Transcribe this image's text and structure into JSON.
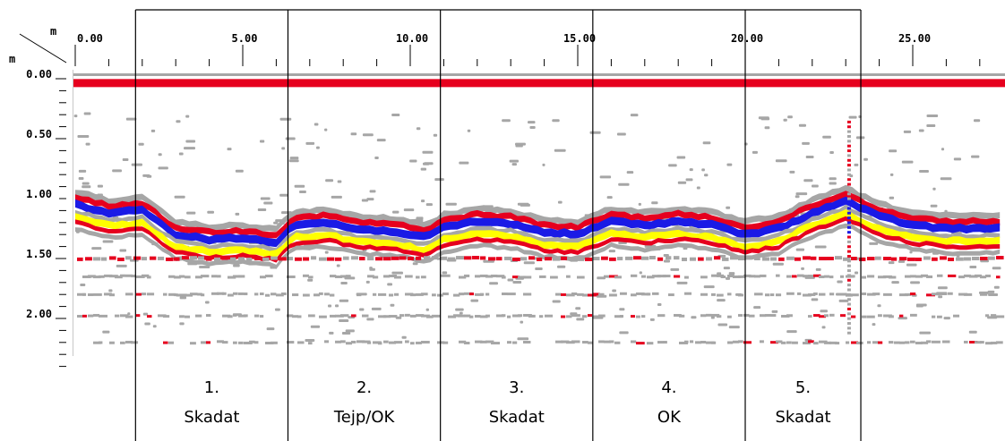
{
  "unit_labels": {
    "horizontal": "m",
    "vertical": "m"
  },
  "x_axis": {
    "unit": "m",
    "range": [
      0,
      27.6
    ],
    "major_ticks": [
      {
        "value": 0,
        "label": "0.00"
      },
      {
        "value": 5,
        "label": "5.00"
      },
      {
        "value": 10,
        "label": "10.00"
      },
      {
        "value": 15,
        "label": "15.00"
      },
      {
        "value": 20,
        "label": "20.00"
      },
      {
        "value": 25,
        "label": "25.00"
      }
    ],
    "minor_tick_step": 1
  },
  "y_axis": {
    "unit": "m",
    "range": [
      -0.1,
      2.4
    ],
    "major_ticks": [
      {
        "value": 0.0,
        "label": "0.00"
      },
      {
        "value": 0.5,
        "label": "0.50"
      },
      {
        "value": 1.0,
        "label": "1.00"
      },
      {
        "value": 1.5,
        "label": "1.50"
      },
      {
        "value": 2.0,
        "label": "2.00"
      }
    ],
    "minor_tick_step": 0.1
  },
  "colors": {
    "red": "#e6001e",
    "blue": "#1a1ae6",
    "yellow": "#ffff00",
    "gray": "#a6a6a6",
    "frame": "#000000"
  },
  "surface_reflection_depth": 0.04,
  "sections": [
    {
      "number": "1.",
      "label": "Skadat",
      "x_start": 1.8,
      "x_end": 6.35
    },
    {
      "number": "2.",
      "label": "Tejp/OK",
      "x_start": 6.35,
      "x_end": 10.9
    },
    {
      "number": "3.",
      "label": "Skadat",
      "x_start": 10.9,
      "x_end": 15.45
    },
    {
      "number": "4.",
      "label": "OK",
      "x_start": 15.45,
      "x_end": 20.0
    },
    {
      "number": "5.",
      "label": "Skadat",
      "x_start": 20.0,
      "x_end": 23.45
    }
  ],
  "reflector_profile": [
    {
      "x": 0.0,
      "depth": 1.05
    },
    {
      "x": 1.0,
      "depth": 1.12
    },
    {
      "x": 2.0,
      "depth": 1.1
    },
    {
      "x": 3.0,
      "depth": 1.3
    },
    {
      "x": 4.0,
      "depth": 1.34
    },
    {
      "x": 5.0,
      "depth": 1.33
    },
    {
      "x": 6.0,
      "depth": 1.36
    },
    {
      "x": 6.5,
      "depth": 1.22
    },
    {
      "x": 7.5,
      "depth": 1.2
    },
    {
      "x": 8.5,
      "depth": 1.26
    },
    {
      "x": 9.5,
      "depth": 1.27
    },
    {
      "x": 10.5,
      "depth": 1.33
    },
    {
      "x": 11.0,
      "depth": 1.24
    },
    {
      "x": 12.0,
      "depth": 1.19
    },
    {
      "x": 13.0,
      "depth": 1.21
    },
    {
      "x": 14.0,
      "depth": 1.28
    },
    {
      "x": 15.0,
      "depth": 1.3
    },
    {
      "x": 16.0,
      "depth": 1.19
    },
    {
      "x": 17.0,
      "depth": 1.22
    },
    {
      "x": 18.0,
      "depth": 1.19
    },
    {
      "x": 19.0,
      "depth": 1.22
    },
    {
      "x": 20.0,
      "depth": 1.3
    },
    {
      "x": 21.0,
      "depth": 1.25
    },
    {
      "x": 22.0,
      "depth": 1.12
    },
    {
      "x": 23.0,
      "depth": 1.02
    },
    {
      "x": 24.0,
      "depth": 1.15
    },
    {
      "x": 25.0,
      "depth": 1.22
    },
    {
      "x": 26.0,
      "depth": 1.25
    },
    {
      "x": 27.6,
      "depth": 1.25
    }
  ],
  "secondary_reflector_depth": 1.5,
  "deep_bands_depths": [
    1.65,
    1.8,
    1.98,
    2.2
  ]
}
